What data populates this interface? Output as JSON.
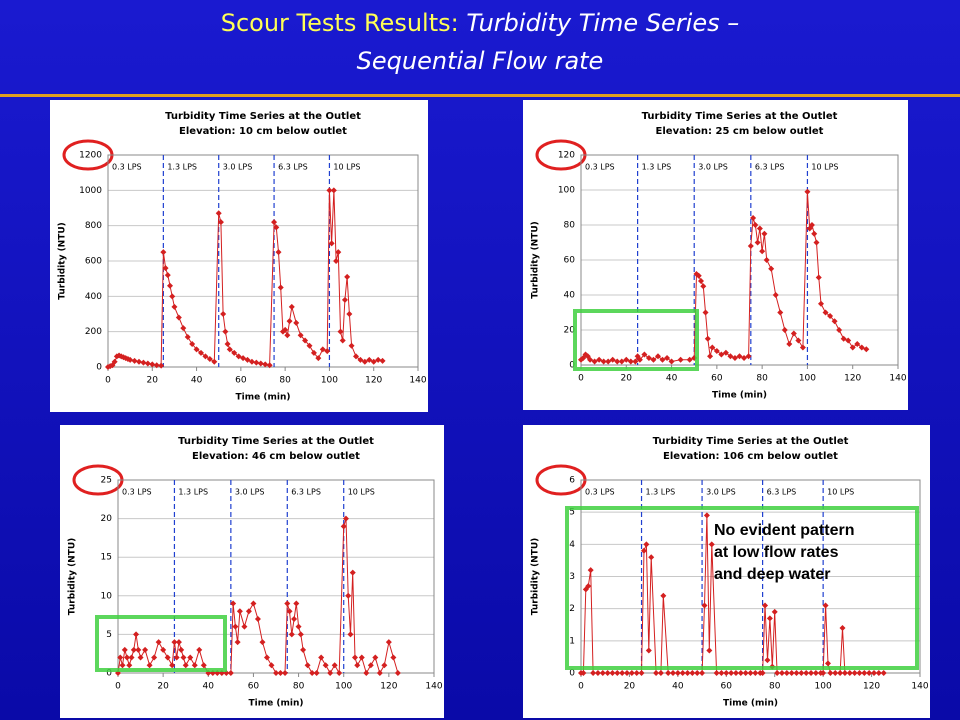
{
  "slide": {
    "title_lead": "Scour Tests Results:",
    "title_rest": "Turbidity Time Series –",
    "title_line2": "Sequential Flow rate"
  },
  "annotation": [
    "No evident pattern",
    "at low flow rates",
    "and deep water"
  ],
  "chart_data": [
    {
      "type": "line",
      "title": "Turbidity Time Series at the Outlet",
      "subtitle": "Elevation: 10 cm below outlet",
      "x_label": "Time (min)",
      "y_label": "Turbidity (NTU)",
      "xlim": [
        0,
        140
      ],
      "xticks": [
        0,
        20,
        40,
        60,
        80,
        100,
        120,
        140
      ],
      "ylim": [
        0,
        1200
      ],
      "yticks": [
        0,
        200,
        400,
        600,
        800,
        1000,
        1200
      ],
      "flow_labels": [
        "0.3 LPS",
        "1.3 LPS",
        "3.0 LPS",
        "6.3 LPS",
        "10 LPS"
      ],
      "flow_changes": [
        25,
        50,
        75,
        100
      ],
      "x": [
        0,
        1,
        2,
        3,
        4,
        5,
        6,
        7,
        8,
        9,
        10,
        12,
        14,
        16,
        18,
        20,
        22,
        24,
        25,
        26,
        27,
        28,
        29,
        30,
        32,
        34,
        36,
        38,
        40,
        42,
        44,
        46,
        48,
        50,
        51,
        52,
        53,
        54,
        55,
        57,
        59,
        61,
        63,
        65,
        67,
        69,
        71,
        73,
        75,
        76,
        77,
        78,
        79,
        80,
        81,
        82,
        83,
        85,
        87,
        89,
        91,
        93,
        95,
        97,
        99,
        100,
        101,
        102,
        103,
        104,
        105,
        106,
        107,
        108,
        109,
        110,
        112,
        114,
        116,
        118,
        120,
        122,
        124
      ],
      "series": [
        {
          "color": "#d42020",
          "values": [
            0,
            5,
            10,
            30,
            60,
            65,
            60,
            55,
            50,
            45,
            40,
            35,
            30,
            25,
            20,
            15,
            10,
            8,
            650,
            560,
            520,
            460,
            400,
            340,
            280,
            220,
            170,
            130,
            100,
            80,
            60,
            45,
            30,
            870,
            820,
            300,
            200,
            130,
            100,
            80,
            60,
            50,
            40,
            30,
            25,
            20,
            15,
            10,
            820,
            790,
            650,
            450,
            200,
            210,
            180,
            260,
            340,
            250,
            180,
            150,
            120,
            80,
            50,
            100,
            90,
            1000,
            700,
            1000,
            600,
            650,
            200,
            150,
            380,
            510,
            300,
            120,
            60,
            40,
            30,
            40,
            30,
            40,
            35
          ]
        }
      ]
    },
    {
      "type": "line",
      "title": "Turbidity Time Series at the Outlet",
      "subtitle": "Elevation: 25 cm below outlet",
      "x_label": "Time (min)",
      "y_label": "Turbidity (NTU)",
      "xlim": [
        0,
        140
      ],
      "xticks": [
        0,
        20,
        40,
        60,
        80,
        100,
        120,
        140
      ],
      "ylim": [
        0,
        120
      ],
      "yticks": [
        0,
        20,
        40,
        60,
        80,
        100,
        120
      ],
      "flow_labels": [
        "0.3 LPS",
        "1.3 LPS",
        "3.0 LPS",
        "6.3 LPS",
        "10 LPS"
      ],
      "flow_changes": [
        25,
        50,
        75,
        100
      ],
      "x": [
        0,
        1,
        2,
        3,
        4,
        6,
        8,
        10,
        12,
        14,
        16,
        18,
        20,
        22,
        24,
        25,
        26,
        28,
        30,
        32,
        34,
        36,
        38,
        40,
        44,
        48,
        50,
        51,
        52,
        53,
        54,
        55,
        56,
        57,
        58,
        60,
        62,
        64,
        66,
        68,
        70,
        72,
        74,
        75,
        76,
        77,
        78,
        79,
        80,
        81,
        82,
        84,
        86,
        88,
        90,
        92,
        94,
        96,
        98,
        100,
        101,
        102,
        103,
        104,
        105,
        106,
        108,
        110,
        112,
        114,
        116,
        118,
        120,
        122,
        124,
        126
      ],
      "series": [
        {
          "color": "#d42020",
          "values": [
            3,
            4,
            6,
            5,
            3,
            2,
            3,
            2,
            2,
            3,
            2,
            2,
            3,
            2,
            2,
            5,
            3,
            6,
            4,
            3,
            5,
            3,
            4,
            2,
            3,
            3,
            4,
            52,
            51,
            48,
            45,
            30,
            15,
            5,
            10,
            8,
            6,
            7,
            5,
            4,
            5,
            4,
            5,
            68,
            84,
            80,
            70,
            78,
            65,
            75,
            60,
            55,
            40,
            30,
            20,
            12,
            18,
            14,
            10,
            99,
            78,
            80,
            75,
            70,
            50,
            35,
            30,
            28,
            25,
            20,
            15,
            14,
            10,
            12,
            10,
            9
          ]
        }
      ]
    },
    {
      "type": "line",
      "title": "Turbidity Time Series at the Outlet",
      "subtitle": "Elevation: 46 cm below outlet",
      "x_label": "Time (min)",
      "y_label": "Turbidity (NTU)",
      "xlim": [
        0,
        140
      ],
      "xticks": [
        0,
        20,
        40,
        60,
        80,
        100,
        120,
        140
      ],
      "ylim": [
        0,
        25
      ],
      "yticks": [
        0,
        5,
        10,
        15,
        20,
        25
      ],
      "flow_labels": [
        "0.3 LPS",
        "1.3 LPS",
        "3.0 LPS",
        "6.3 LPS",
        "10 LPS"
      ],
      "flow_changes": [
        25,
        50,
        75,
        100
      ],
      "x": [
        0,
        1,
        2,
        3,
        4,
        5,
        6,
        7,
        8,
        9,
        10,
        12,
        14,
        16,
        18,
        20,
        22,
        24,
        25,
        26,
        27,
        28,
        29,
        30,
        32,
        34,
        36,
        38,
        40,
        42,
        44,
        46,
        48,
        50,
        51,
        52,
        53,
        54,
        56,
        58,
        60,
        62,
        64,
        66,
        68,
        70,
        72,
        74,
        75,
        76,
        77,
        78,
        79,
        80,
        81,
        82,
        84,
        86,
        88,
        90,
        92,
        94,
        96,
        98,
        100,
        101,
        102,
        103,
        104,
        105,
        106,
        108,
        110,
        112,
        114,
        116,
        118,
        120,
        122,
        124
      ],
      "series": [
        {
          "color": "#d42020",
          "values": [
            0,
            2,
            1,
            3,
            2,
            1,
            2,
            3,
            5,
            3,
            2,
            3,
            1,
            2,
            4,
            3,
            2,
            1,
            4,
            2,
            4,
            3,
            2,
            1,
            2,
            1,
            3,
            1,
            0,
            0,
            0,
            0,
            0,
            0,
            9,
            6,
            4,
            8,
            6,
            8,
            9,
            7,
            4,
            2,
            1,
            0,
            0,
            0,
            9,
            8,
            5,
            7,
            9,
            6,
            5,
            3,
            1,
            0,
            0,
            2,
            1,
            0,
            1,
            0,
            19,
            20,
            10,
            5,
            13,
            2,
            1,
            2,
            0,
            1,
            2,
            0,
            1,
            4,
            2,
            0
          ]
        }
      ]
    },
    {
      "type": "line",
      "title": "Turbidity Time Series at the Outlet",
      "subtitle": "Elevation: 106 cm below outlet",
      "x_label": "Time (min)",
      "y_label": "Turbidity (NTU)",
      "xlim": [
        0,
        140
      ],
      "xticks": [
        0,
        20,
        40,
        60,
        80,
        100,
        120,
        140
      ],
      "ylim": [
        0,
        6
      ],
      "yticks": [
        0,
        1,
        2,
        3,
        4,
        5,
        6
      ],
      "flow_labels": [
        "0.3 LPS",
        "1.3 LPS",
        "3.0 LPS",
        "6.3 LPS",
        "10 LPS"
      ],
      "flow_changes": [
        25,
        50,
        75,
        100
      ],
      "x": [
        0,
        1,
        2,
        3,
        4,
        5,
        7,
        9,
        11,
        13,
        15,
        17,
        19,
        21,
        23,
        25,
        26,
        27,
        28,
        29,
        31,
        33,
        34,
        36,
        38,
        40,
        42,
        44,
        46,
        48,
        50,
        51,
        52,
        53,
        54,
        56,
        58,
        60,
        62,
        64,
        66,
        68,
        70,
        72,
        74,
        75,
        76,
        77,
        78,
        79,
        80,
        81,
        83,
        85,
        87,
        89,
        91,
        93,
        95,
        97,
        99,
        100,
        101,
        102,
        103,
        105,
        107,
        108,
        109,
        111,
        113,
        115,
        117,
        119,
        121,
        123,
        125
      ],
      "series": [
        {
          "color": "#d42020",
          "values": [
            0,
            0,
            2.6,
            2.7,
            3.2,
            0,
            0,
            0,
            0,
            0,
            0,
            0,
            0,
            0,
            0,
            0,
            3.8,
            4.0,
            0.7,
            3.6,
            0,
            0,
            2.4,
            0,
            0,
            0,
            0,
            0,
            0,
            0,
            0,
            2.1,
            4.9,
            0.7,
            4.0,
            0,
            0,
            0,
            0,
            0,
            0,
            0,
            0,
            0,
            0,
            0,
            2.1,
            0.4,
            1.7,
            0.2,
            1.9,
            0,
            0,
            0,
            0,
            0,
            0,
            0,
            0,
            0,
            0,
            0,
            2.1,
            0.3,
            0,
            0,
            0,
            1.4,
            0,
            0,
            0,
            0,
            0,
            0,
            0,
            0,
            0
          ]
        }
      ]
    }
  ]
}
